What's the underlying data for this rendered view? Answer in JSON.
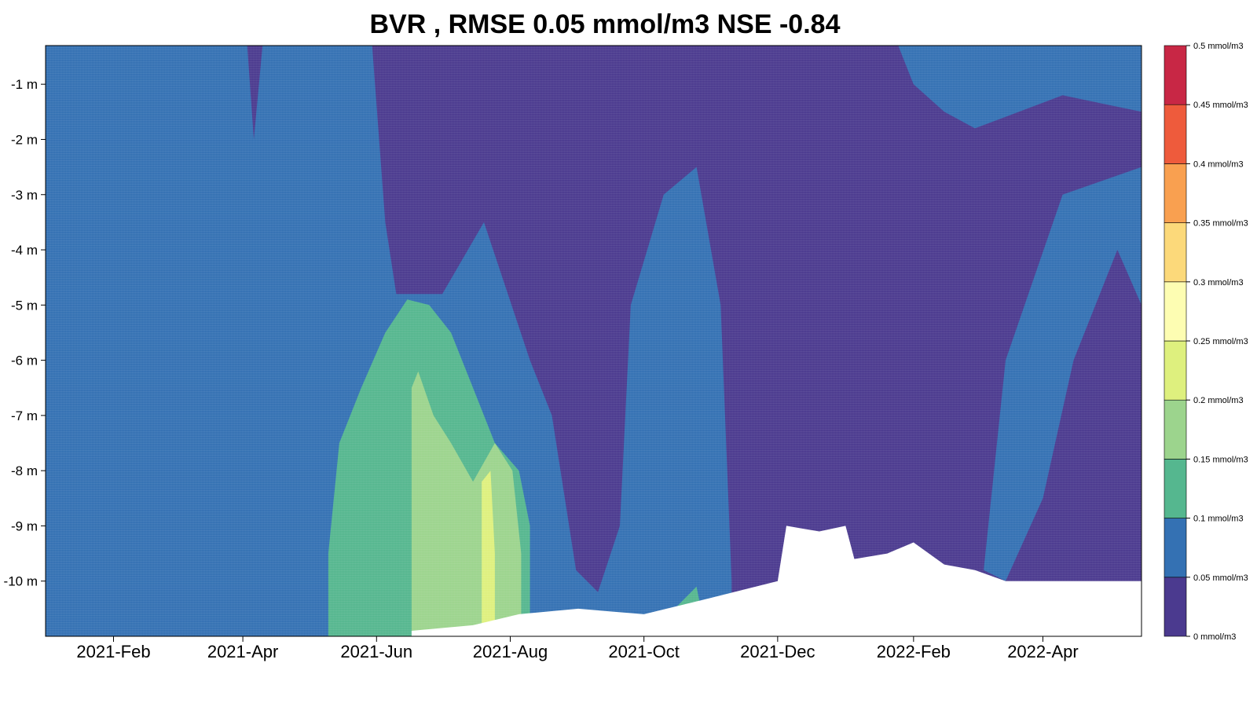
{
  "chart_data": {
    "type": "heatmap",
    "title": "BVR , RMSE 0.05 mmol/m3 NSE -0.84",
    "xlabel": "",
    "ylabel": "",
    "x_range": [
      "2021-01-01",
      "2022-05-16"
    ],
    "y_range": [
      -11.0,
      -0.3
    ],
    "x_ticks": [
      {
        "date": "2021-02-01",
        "label": "2021-Feb"
      },
      {
        "date": "2021-04-01",
        "label": "2021-Apr"
      },
      {
        "date": "2021-06-01",
        "label": "2021-Jun"
      },
      {
        "date": "2021-08-01",
        "label": "2021-Aug"
      },
      {
        "date": "2021-10-01",
        "label": "2021-Oct"
      },
      {
        "date": "2021-12-01",
        "label": "2021-Dec"
      },
      {
        "date": "2022-02-01",
        "label": "2022-Feb"
      },
      {
        "date": "2022-04-01",
        "label": "2022-Apr"
      }
    ],
    "y_ticks": [
      {
        "value": -1,
        "label": "-1 m"
      },
      {
        "value": -2,
        "label": "-2 m"
      },
      {
        "value": -3,
        "label": "-3 m"
      },
      {
        "value": -4,
        "label": "-4 m"
      },
      {
        "value": -5,
        "label": "-5 m"
      },
      {
        "value": -6,
        "label": "-6 m"
      },
      {
        "value": -7,
        "label": "-7 m"
      },
      {
        "value": -8,
        "label": "-8 m"
      },
      {
        "value": -9,
        "label": "-9 m"
      },
      {
        "value": -10,
        "label": "-10 m"
      }
    ],
    "legend": {
      "placement": "right",
      "unit": "mmol/m3",
      "breaks": [
        0,
        0.05,
        0.1,
        0.15,
        0.2,
        0.25,
        0.3,
        0.35,
        0.4,
        0.45,
        0.5
      ],
      "labels": [
        "0 mmol/m3",
        "0.05 mmol/m3",
        "0.1 mmol/m3",
        "0.15 mmol/m3",
        "0.2 mmol/m3",
        "0.25 mmol/m3",
        "0.3 mmol/m3",
        "0.35 mmol/m3",
        "0.4 mmol/m3",
        "0.45 mmol/m3",
        "0.5 mmol/m3"
      ],
      "colors": [
        "#4b3a8f",
        "#3471b3",
        "#55b78f",
        "#9cd48d",
        "#def07e",
        "#fdfdb2",
        "#fcd97a",
        "#f9a050",
        "#ee5b3c",
        "#c82745"
      ]
    },
    "regions": [
      {
        "level": 1,
        "color": "#3471b3",
        "polygon": [
          [
            "2021-01-01",
            -0.3
          ],
          [
            "2021-04-03",
            -0.3
          ],
          [
            "2021-04-06",
            -2.0
          ],
          [
            "2021-04-10",
            -0.3
          ],
          [
            "2021-05-30",
            -0.3
          ],
          [
            "2021-06-05",
            -3.5
          ],
          [
            "2021-06-10",
            -4.8
          ],
          [
            "2021-07-01",
            -4.8
          ],
          [
            "2021-07-20",
            -3.5
          ],
          [
            "2021-08-10",
            -6.0
          ],
          [
            "2021-08-20",
            -7.0
          ],
          [
            "2021-08-31",
            -9.8
          ],
          [
            "2021-09-10",
            -10.2
          ],
          [
            "2021-09-20",
            -9.0
          ],
          [
            "2021-09-25",
            -5.0
          ],
          [
            "2021-10-10",
            -3.0
          ],
          [
            "2021-10-25",
            -2.5
          ],
          [
            "2021-11-05",
            -5.0
          ],
          [
            "2021-11-10",
            -10.0
          ],
          [
            "2021-11-10",
            -11.0
          ],
          [
            "2021-01-01",
            -11.0
          ]
        ]
      },
      {
        "level": 1,
        "color": "#3471b3",
        "polygon": [
          [
            "2022-01-25",
            -0.3
          ],
          [
            "2022-05-16",
            -0.3
          ],
          [
            "2022-05-16",
            -5.0
          ],
          [
            "2022-05-05",
            -4.0
          ],
          [
            "2022-04-15",
            -6.0
          ],
          [
            "2022-04-01",
            -8.5
          ],
          [
            "2022-03-15",
            -10.0
          ],
          [
            "2022-03-05",
            -9.8
          ],
          [
            "2022-03-15",
            -6.0
          ],
          [
            "2022-04-10",
            -3.0
          ],
          [
            "2022-05-16",
            -2.5
          ],
          [
            "2022-05-16",
            -1.5
          ],
          [
            "2022-04-10",
            -1.2
          ],
          [
            "2022-03-01",
            -1.8
          ],
          [
            "2022-02-15",
            -1.5
          ],
          [
            "2022-02-01",
            -1.0
          ]
        ]
      },
      {
        "level": 2,
        "color": "#55b78f",
        "polygon": [
          [
            "2021-05-10",
            -11.0
          ],
          [
            "2021-05-10",
            -9.5
          ],
          [
            "2021-05-15",
            -7.5
          ],
          [
            "2021-05-25",
            -6.5
          ],
          [
            "2021-06-05",
            -5.5
          ],
          [
            "2021-06-15",
            -4.9
          ],
          [
            "2021-06-25",
            -5.0
          ],
          [
            "2021-07-05",
            -5.5
          ],
          [
            "2021-07-15",
            -6.5
          ],
          [
            "2021-07-25",
            -7.5
          ],
          [
            "2021-08-05",
            -8.0
          ],
          [
            "2021-08-10",
            -9.0
          ],
          [
            "2021-08-10",
            -11.0
          ]
        ]
      },
      {
        "level": 3,
        "color": "#9cd48d",
        "polygon": [
          [
            "2021-06-17",
            -11.0
          ],
          [
            "2021-06-17",
            -6.5
          ],
          [
            "2021-06-20",
            -6.2
          ],
          [
            "2021-06-27",
            -7.0
          ],
          [
            "2021-07-05",
            -7.5
          ],
          [
            "2021-07-15",
            -8.2
          ],
          [
            "2021-07-25",
            -7.5
          ],
          [
            "2021-08-02",
            -8.0
          ],
          [
            "2021-08-06",
            -9.5
          ],
          [
            "2021-08-06",
            -11.0
          ]
        ]
      },
      {
        "level": 4,
        "color": "#def07e",
        "polygon": [
          [
            "2021-07-19",
            -11.0
          ],
          [
            "2021-07-19",
            -8.2
          ],
          [
            "2021-07-23",
            -8.0
          ],
          [
            "2021-07-25",
            -9.5
          ],
          [
            "2021-07-25",
            -11.0
          ]
        ]
      },
      {
        "level": 2,
        "color": "#55b78f",
        "polygon": [
          [
            "2021-10-15",
            -10.5
          ],
          [
            "2021-10-25",
            -10.1
          ],
          [
            "2021-10-27",
            -10.5
          ]
        ]
      }
    ],
    "bottom_mask": [
      [
        "2021-06-17",
        -11.0
      ],
      [
        "2021-06-17",
        -10.9
      ],
      [
        "2021-07-15",
        -10.8
      ],
      [
        "2021-08-05",
        -10.6
      ],
      [
        "2021-09-01",
        -10.5
      ],
      [
        "2021-10-01",
        -10.6
      ],
      [
        "2021-11-01",
        -10.3
      ],
      [
        "2021-12-01",
        -10.0
      ],
      [
        "2021-12-05",
        -9.0
      ],
      [
        "2021-12-20",
        -9.1
      ],
      [
        "2022-01-01",
        -9.0
      ],
      [
        "2022-01-05",
        -9.6
      ],
      [
        "2022-01-20",
        -9.5
      ],
      [
        "2022-02-01",
        -9.3
      ],
      [
        "2022-02-15",
        -9.7
      ],
      [
        "2022-03-01",
        -9.8
      ],
      [
        "2022-03-15",
        -10.0
      ],
      [
        "2022-05-16",
        -10.0
      ],
      [
        "2022-05-16",
        -11.0
      ]
    ]
  }
}
